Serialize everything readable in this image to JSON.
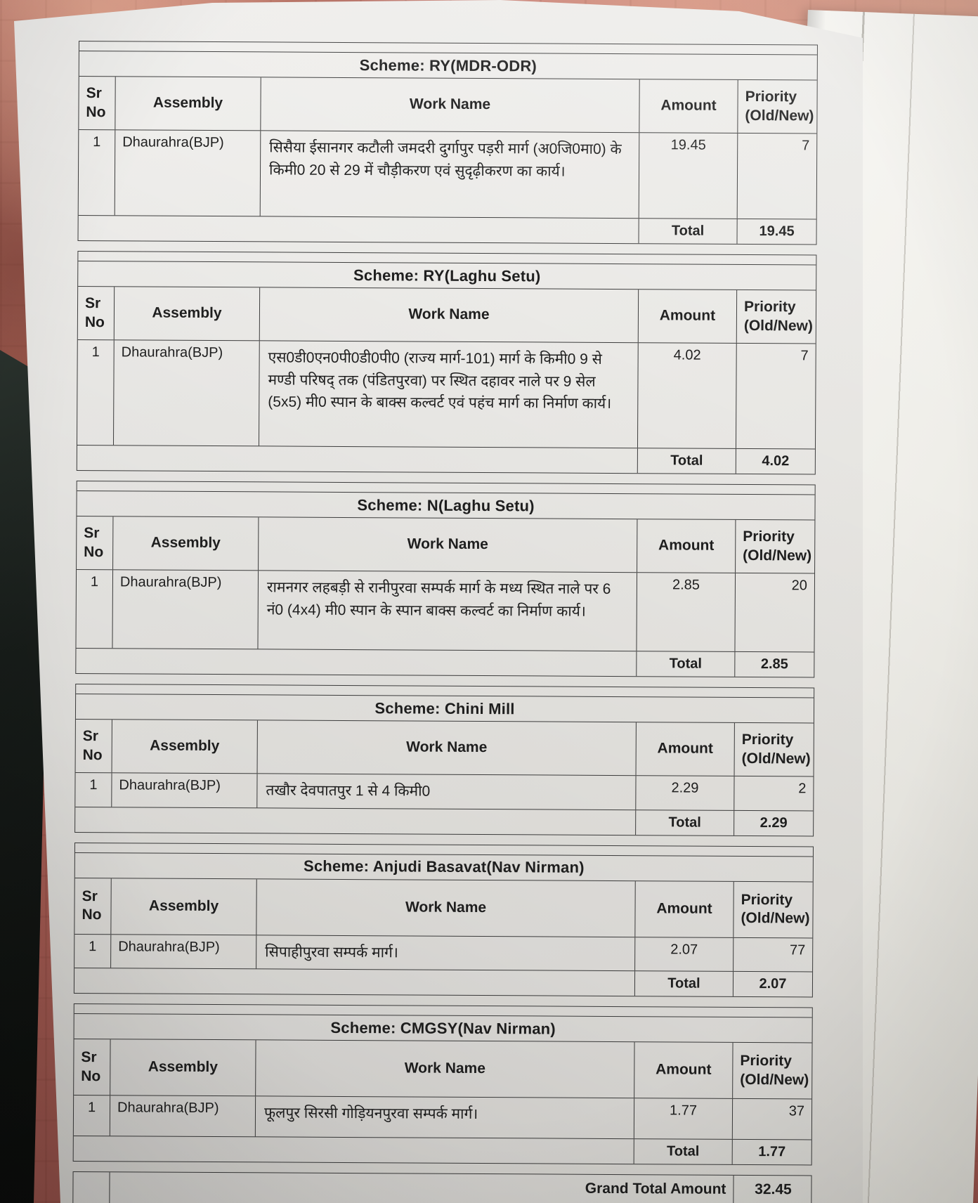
{
  "colors": {
    "floor": "#bd7169",
    "paper": "#e9e8e5",
    "page_stack": "#f3f2ee",
    "table_border": "#3e3e3e",
    "ink": "#1f1f1f",
    "dark_object": "#141916"
  },
  "document": {
    "columns": {
      "sr": "Sr No",
      "assembly": "Assembly",
      "work": "Work Name",
      "amount": "Amount",
      "priority": "Priority (Old/New)"
    },
    "schemes": [
      {
        "title": "Scheme: RY(MDR-ODR)",
        "row": {
          "sr": "1",
          "assembly": "Dhaurahra(BJP)",
          "work": "सिसैया ईसानगर कटौली जमदरी दुर्गापुर पड़री मार्ग (अ0जि0मा0) के किमी0 20 से 29 में चौड़ीकरण एवं सुदृढ़ीकरण का कार्य।",
          "amount": "19.45",
          "priority": "7"
        },
        "total_label": "Total",
        "total_value": "19.45"
      },
      {
        "title": "Scheme: RY(Laghu Setu)",
        "row": {
          "sr": "1",
          "assembly": "Dhaurahra(BJP)",
          "work": "एस0डी0एन0पी0डी0पी0 (राज्य मार्ग-101) मार्ग के किमी0 9 से मण्डी परिषद् तक (पंडितपुरवा) पर स्थित दहावर नाले पर 9 सेल (5x5) मी0 स्पान के बाक्स कल्वर्ट एवं पहंच मार्ग का निर्माण कार्य।",
          "amount": "4.02",
          "priority": "7"
        },
        "total_label": "Total",
        "total_value": "4.02"
      },
      {
        "title": "Scheme: N(Laghu Setu)",
        "row": {
          "sr": "1",
          "assembly": "Dhaurahra(BJP)",
          "work": "रामनगर लहबड़ी से रानीपुरवा सम्पर्क मार्ग के मध्य स्थित नाले पर 6 नं0 (4x4) मी0 स्पान के स्पान बाक्स कल्वर्ट का निर्माण कार्य।",
          "amount": "2.85",
          "priority": "20"
        },
        "total_label": "Total",
        "total_value": "2.85"
      },
      {
        "title": "Scheme: Chini Mill",
        "row": {
          "sr": "1",
          "assembly": "Dhaurahra(BJP)",
          "work": "तखौर देवपातपुर 1 से 4 किमी0",
          "amount": "2.29",
          "priority": "2"
        },
        "total_label": "Total",
        "total_value": "2.29"
      },
      {
        "title": "Scheme: Anjudi Basavat(Nav Nirman)",
        "row": {
          "sr": "1",
          "assembly": "Dhaurahra(BJP)",
          "work": "सिपाहीपुरवा सम्पर्क मार्ग।",
          "amount": "2.07",
          "priority": "77"
        },
        "total_label": "Total",
        "total_value": "2.07"
      },
      {
        "title": "Scheme: CMGSY(Nav Nirman)",
        "row": {
          "sr": "1",
          "assembly": "Dhaurahra(BJP)",
          "work": "फूलपुर सिरसी गोड़ियनपुरवा सम्पर्क मार्ग।",
          "amount": "1.77",
          "priority": "37"
        },
        "total_label": "Total",
        "total_value": "1.77"
      }
    ],
    "grand_total": {
      "label": "Grand Total Amount",
      "value": "32.45"
    }
  }
}
